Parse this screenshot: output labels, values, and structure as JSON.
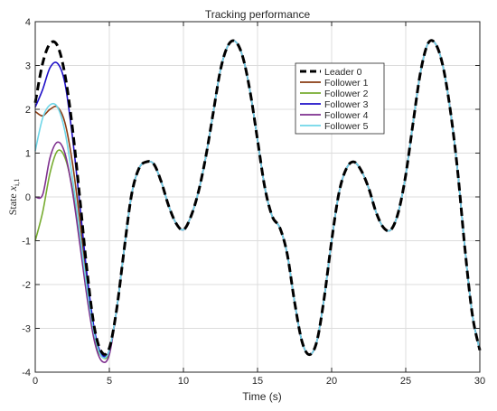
{
  "chart_data": {
    "type": "line",
    "title": "Tracking performance",
    "xlabel": "Time (s)",
    "ylabel_text": "State ",
    "ylabel_math": "x",
    "ylabel_sub": "i,1",
    "xlim": [
      0,
      30
    ],
    "ylim": [
      -4,
      4
    ],
    "xticks": [
      0,
      5,
      10,
      15,
      20,
      25,
      30
    ],
    "yticks": [
      -4,
      -3,
      -2,
      -1,
      0,
      1,
      2,
      3,
      4
    ],
    "grid": true,
    "legend_position": "top-right",
    "leader": {
      "name": "Leader 0",
      "color": "#000000",
      "style": "dashed",
      "x": [
        0,
        0.5,
        1,
        1.5,
        2,
        2.5,
        3,
        3.5,
        4,
        4.5,
        5,
        5.5,
        6,
        6.5,
        7,
        7.5,
        8,
        8.5,
        9,
        9.5,
        10,
        10.5,
        11,
        11.5,
        12,
        12.5,
        13,
        13.5,
        14,
        14.5,
        15,
        15.5,
        16,
        16.5,
        17,
        17.5,
        18,
        18.5,
        19,
        19.5,
        20,
        20.5,
        21,
        21.5,
        22,
        22.5,
        23,
        23.5,
        24,
        24.5,
        25,
        25.5,
        26,
        26.5,
        27,
        27.5,
        28,
        28.5,
        29,
        29.5,
        30
      ],
      "y": [
        2.15,
        3.05,
        3.5,
        3.45,
        2.8,
        1.6,
        0.0,
        -1.7,
        -3.0,
        -3.55,
        -3.45,
        -2.55,
        -1.2,
        0.05,
        0.65,
        0.8,
        0.75,
        0.35,
        -0.2,
        -0.6,
        -0.75,
        -0.45,
        0.1,
        0.9,
        1.9,
        2.9,
        3.45,
        3.55,
        3.2,
        2.4,
        1.3,
        0.2,
        -0.45,
        -0.7,
        -1.3,
        -2.4,
        -3.3,
        -3.6,
        -3.3,
        -2.3,
        -1.0,
        0.1,
        0.65,
        0.8,
        0.6,
        0.2,
        -0.35,
        -0.7,
        -0.75,
        -0.35,
        0.5,
        1.7,
        2.85,
        3.5,
        3.5,
        3.0,
        2.0,
        0.6,
        -1.2,
        -2.7,
        -3.5
      ]
    },
    "followers": [
      {
        "name": "Follower 1",
        "color": "#8a3b12",
        "y": [
          1.95,
          1.85,
          2.0,
          2.05,
          1.7,
          0.8,
          -0.5,
          -2.0,
          -3.1,
          -3.6,
          -3.5
        ]
      },
      {
        "name": "Follower 2",
        "color": "#77ac30",
        "y": [
          -1.0,
          -0.35,
          0.55,
          1.05,
          0.9,
          0.2,
          -1.0,
          -2.25,
          -3.25,
          -3.65,
          -3.55
        ]
      },
      {
        "name": "Follower 3",
        "color": "#1f10c8",
        "y": [
          2.05,
          2.45,
          2.95,
          3.05,
          2.6,
          1.4,
          -0.15,
          -1.8,
          -3.05,
          -3.6,
          -3.5
        ]
      },
      {
        "name": "Follower 4",
        "color": "#7e2f8e",
        "y": [
          0.0,
          0.05,
          0.9,
          1.25,
          1.0,
          0.15,
          -1.05,
          -2.3,
          -3.3,
          -3.75,
          -3.6
        ]
      },
      {
        "name": "Follower 5",
        "color": "#6fd6e8",
        "y": [
          1.05,
          1.8,
          2.1,
          2.05,
          1.5,
          0.45,
          -0.8,
          -2.1,
          -3.15,
          -3.65,
          -3.5
        ]
      }
    ]
  }
}
